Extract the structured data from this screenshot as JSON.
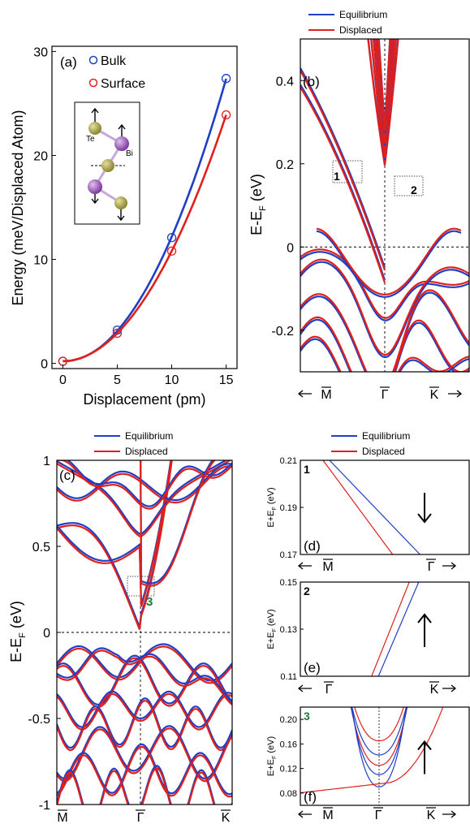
{
  "colors": {
    "equilibrium": "#1f3fc4",
    "displaced": "#e0201c",
    "bulk": "#1f3fc4",
    "surface": "#e0201c",
    "label3": "#1e7a3a",
    "te_atom": "#9a9436",
    "bi_atom": "#9b55b8"
  },
  "chart_data": [
    {
      "type": "scatter",
      "panel_label": "(a)",
      "xlabel": "Displacement (pm)",
      "ylabel": "Energy (meV/Displaced Atom)",
      "xlim": [
        -1,
        16
      ],
      "ylim": [
        -0.5,
        30.5
      ],
      "x_ticks": [
        "0",
        "5",
        "10",
        "15"
      ],
      "y_ticks": [
        "0",
        "10",
        "20",
        "30"
      ],
      "series": [
        {
          "name": "Bulk",
          "x": [
            0,
            5,
            10,
            15
          ],
          "values": [
            0.2,
            3.2,
            12.1,
            27.4
          ]
        },
        {
          "name": "Surface",
          "x": [
            0,
            5,
            10,
            15
          ],
          "values": [
            0.2,
            2.9,
            10.8,
            23.9
          ]
        }
      ],
      "inset_labels": {
        "te": "Te",
        "bi": "Bi"
      }
    },
    {
      "type": "line",
      "panel_label": "(b)",
      "ylabel_main": "E-E",
      "ylabel_sub": "F",
      "ylabel_unit": " (eV)",
      "ylim": [
        -0.3,
        0.5
      ],
      "y_ticks": [
        "0.4",
        "0.2",
        "0",
        "-0.2"
      ],
      "x_ticks": [
        "M",
        "Γ",
        "K"
      ],
      "legend": [
        "Equilibrium",
        "Displaced"
      ],
      "box_labels": [
        "1",
        "2"
      ]
    },
    {
      "type": "line",
      "panel_label": "(c)",
      "ylabel_main": "E-E",
      "ylabel_sub": "F",
      "ylabel_unit": " (eV)",
      "ylim": [
        -1,
        1
      ],
      "y_ticks": [
        "1",
        "0.5",
        "0",
        "-0.5",
        "-1"
      ],
      "x_ticks": [
        "M",
        "Γ",
        "K"
      ],
      "legend": [
        "Equilibrium",
        "Displaced"
      ],
      "box_label": "3"
    },
    {
      "type": "line",
      "panel_label": "(d)",
      "corner_label": "1",
      "ylabel_main": "E+E",
      "ylabel_sub": "F",
      "ylabel_unit": " (eV)",
      "ylim": [
        0.17,
        0.21
      ],
      "y_ticks": [
        "0.21",
        "0.19",
        "0.17"
      ],
      "x_ticks": [
        "M",
        "Γ"
      ],
      "arrow": "down",
      "legend": [
        "Equilibrium",
        "Displaced"
      ]
    },
    {
      "type": "line",
      "panel_label": "(e)",
      "corner_label": "2",
      "ylabel_main": "E+E",
      "ylabel_sub": "F",
      "ylabel_unit": " (eV)",
      "ylim": [
        0.11,
        0.15
      ],
      "y_ticks": [
        "0.15",
        "0.13",
        "0.11"
      ],
      "x_ticks": [
        "Γ",
        "K"
      ],
      "arrow": "up"
    },
    {
      "type": "line",
      "panel_label": "(f)",
      "corner_label": "3",
      "ylabel_main": "E+E",
      "ylabel_sub": "F",
      "ylabel_unit": " (eV)",
      "ylim": [
        0.06,
        0.22
      ],
      "y_ticks": [
        "0.20",
        "0.16",
        "0.12",
        "0.08"
      ],
      "x_ticks": [
        "M",
        "Γ",
        "K"
      ],
      "arrow": "up"
    }
  ]
}
